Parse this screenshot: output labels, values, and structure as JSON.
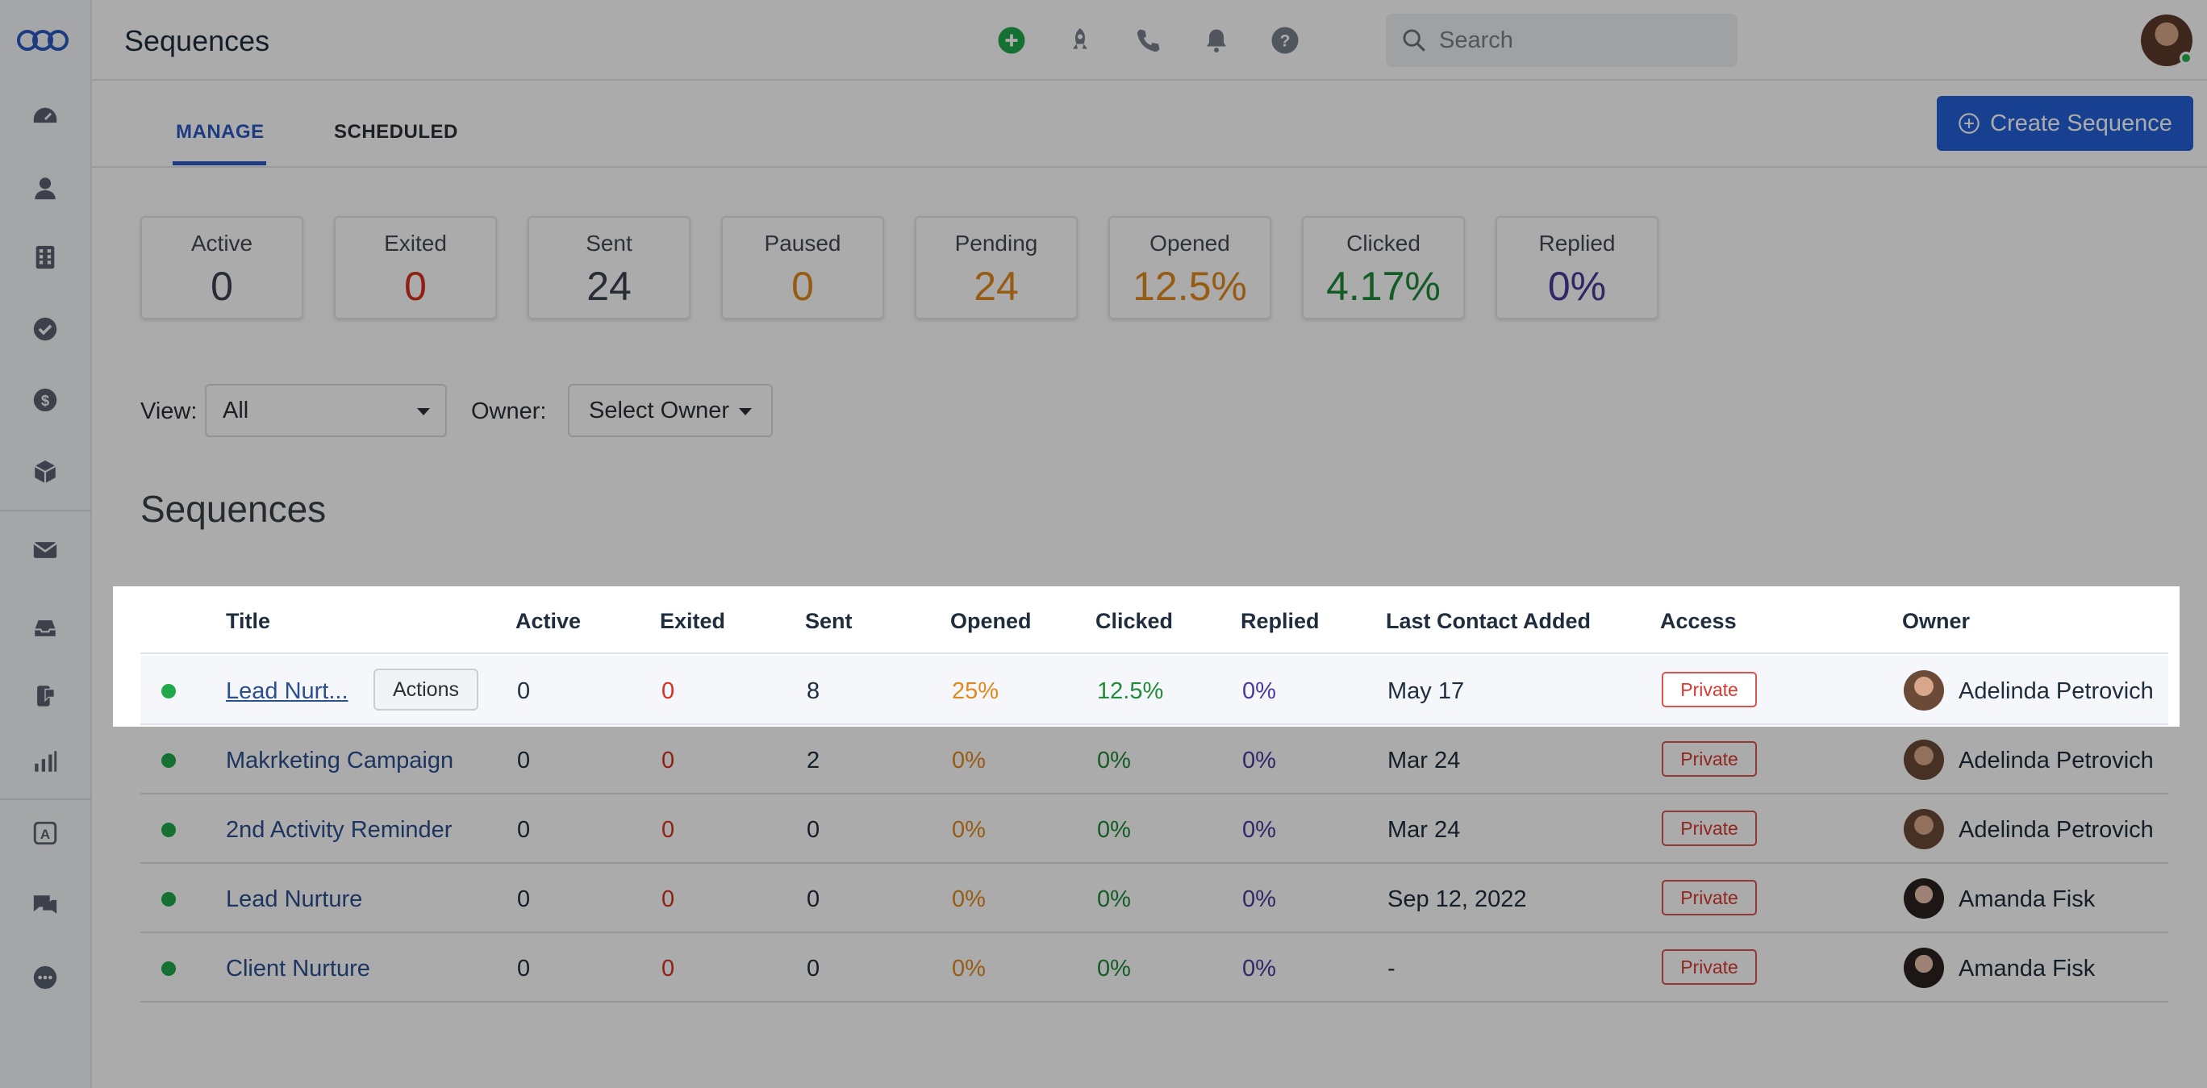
{
  "header": {
    "page_title": "Sequences",
    "search_placeholder": "Search"
  },
  "sidebar": {
    "items": [
      {
        "icon": "dashboard-icon"
      },
      {
        "icon": "person-icon"
      },
      {
        "icon": "building-icon"
      },
      {
        "icon": "check-circle-icon"
      },
      {
        "icon": "dollar-icon"
      },
      {
        "icon": "box-icon"
      },
      {
        "icon": "mail-icon"
      },
      {
        "icon": "inbox-icon"
      },
      {
        "icon": "phone-chat-icon"
      },
      {
        "icon": "bar-chart-icon"
      },
      {
        "icon": "automation-icon"
      },
      {
        "icon": "chat-icon"
      },
      {
        "icon": "more-icon"
      }
    ]
  },
  "tabs": {
    "manage": "MANAGE",
    "scheduled": "SCHEDULED"
  },
  "create_button": "Create Sequence",
  "stats": [
    {
      "label": "Active",
      "value": "0",
      "color": "#3b4250"
    },
    {
      "label": "Exited",
      "value": "0",
      "color": "#d7301f"
    },
    {
      "label": "Sent",
      "value": "24",
      "color": "#3b4250"
    },
    {
      "label": "Paused",
      "value": "0",
      "color": "#e08a1e"
    },
    {
      "label": "Pending",
      "value": "24",
      "color": "#e08a1e"
    },
    {
      "label": "Opened",
      "value": "12.5%",
      "color": "#e08a1e"
    },
    {
      "label": "Clicked",
      "value": "4.17%",
      "color": "#1f8a3a"
    },
    {
      "label": "Replied",
      "value": "0%",
      "color": "#4b3a9a"
    }
  ],
  "filters": {
    "view_label": "View:",
    "view_value": "All",
    "owner_label": "Owner:",
    "owner_value": "Select Owner"
  },
  "section_title": "Sequences",
  "table": {
    "headers": {
      "title": "Title",
      "active": "Active",
      "exited": "Exited",
      "sent": "Sent",
      "opened": "Opened",
      "clicked": "Clicked",
      "replied": "Replied",
      "last_contact": "Last Contact Added",
      "access": "Access",
      "owner": "Owner"
    },
    "actions_label": "Actions",
    "rows": [
      {
        "title": "Lead Nurt...",
        "active": "0",
        "exited": "0",
        "sent": "8",
        "opened": "25%",
        "clicked": "12.5%",
        "replied": "0%",
        "last_contact": "May 17",
        "access": "Private",
        "owner": "Adelinda Petrovich"
      },
      {
        "title": "Makrketing Campaign",
        "active": "0",
        "exited": "0",
        "sent": "2",
        "opened": "0%",
        "clicked": "0%",
        "replied": "0%",
        "last_contact": "Mar 24",
        "access": "Private",
        "owner": "Adelinda Petrovich"
      },
      {
        "title": "2nd Activity Reminder",
        "active": "0",
        "exited": "0",
        "sent": "0",
        "opened": "0%",
        "clicked": "0%",
        "replied": "0%",
        "last_contact": "Mar 24",
        "access": "Private",
        "owner": "Adelinda Petrovich"
      },
      {
        "title": "Lead Nurture",
        "active": "0",
        "exited": "0",
        "sent": "0",
        "opened": "0%",
        "clicked": "0%",
        "replied": "0%",
        "last_contact": "Sep 12, 2022",
        "access": "Private",
        "owner": "Amanda Fisk"
      },
      {
        "title": "Client Nurture",
        "active": "0",
        "exited": "0",
        "sent": "0",
        "opened": "0%",
        "clicked": "0%",
        "replied": "0%",
        "last_contact": "-",
        "access": "Private",
        "owner": "Amanda Fisk"
      }
    ]
  },
  "colors": {
    "accent": "#2460d9",
    "exited": "#d7301f",
    "opened": "#e08a1e",
    "clicked": "#1f8a3a",
    "replied": "#4b3a9a",
    "status_active": "#1fa94a"
  }
}
